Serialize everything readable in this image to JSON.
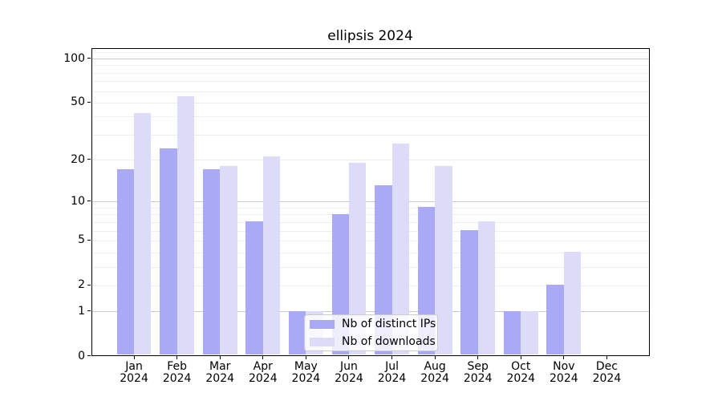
{
  "chart_data": {
    "type": "bar",
    "title": "ellipsis 2024",
    "categories": [
      "Jan",
      "Feb",
      "Mar",
      "Apr",
      "May",
      "Jun",
      "Jul",
      "Aug",
      "Sep",
      "Oct",
      "Nov",
      "Dec"
    ],
    "year_label": "2024",
    "series": [
      {
        "name": "Nb of distinct IPs",
        "color": "#a9a9f6",
        "values": [
          17,
          24,
          17,
          7,
          1,
          8,
          13,
          9,
          6,
          1,
          2,
          0
        ]
      },
      {
        "name": "Nb of downloads",
        "color": "#dcdcf9",
        "values": [
          42,
          55,
          18,
          21,
          1,
          19,
          26,
          18,
          7,
          1,
          4,
          0
        ]
      }
    ],
    "yscale": "log1p",
    "ylim": [
      0,
      117
    ],
    "yticks": [
      0,
      1,
      2,
      5,
      10,
      20,
      50,
      100
    ],
    "major_gridlines": [
      1,
      10,
      100
    ],
    "minor_gridlines": [
      2,
      3,
      4,
      5,
      6,
      7,
      8,
      9,
      20,
      30,
      40,
      50,
      60,
      70,
      80,
      90,
      110
    ],
    "grid": true,
    "legend_position": "lower-center",
    "colors": {
      "spine": "#000000",
      "major_grid": "#c8c8c8",
      "minor_grid": "#ededed",
      "legend_border": "#cccccc",
      "text": "#000000"
    }
  }
}
